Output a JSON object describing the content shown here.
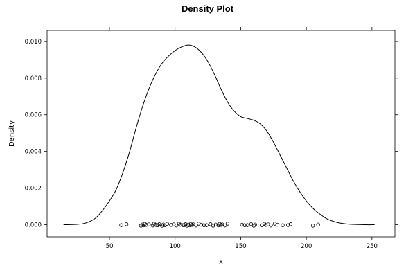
{
  "chart_data": {
    "type": "line",
    "title": "Density Plot",
    "xlabel": "x",
    "ylabel": "Density",
    "xlim": [
      2.5,
      267.5
    ],
    "ylim": [
      -0.00066,
      0.0106
    ],
    "x_ticks": [
      50,
      100,
      150,
      200,
      250
    ],
    "x_tick_labels": [
      "50",
      "100",
      "150",
      "200",
      "250"
    ],
    "y_ticks": [
      0.0,
      0.002,
      0.004,
      0.006,
      0.008,
      0.01
    ],
    "y_tick_labels": [
      "0.000",
      "0.002",
      "0.004",
      "0.006",
      "0.008",
      "0.010"
    ],
    "grid": false,
    "series": [
      {
        "points": [
          [
            15,
            0.0
          ],
          [
            25,
            2e-05
          ],
          [
            30,
            6e-05
          ],
          [
            35,
            0.00018
          ],
          [
            40,
            0.0004
          ],
          [
            45,
            0.0008
          ],
          [
            50,
            0.0013
          ],
          [
            55,
            0.0019
          ],
          [
            60,
            0.0028
          ],
          [
            65,
            0.0039
          ],
          [
            70,
            0.0052
          ],
          [
            75,
            0.0064
          ],
          [
            80,
            0.0074
          ],
          [
            85,
            0.0082
          ],
          [
            90,
            0.0088
          ],
          [
            95,
            0.0092
          ],
          [
            100,
            0.0095
          ],
          [
            105,
            0.0097
          ],
          [
            110,
            0.0098
          ],
          [
            115,
            0.0097
          ],
          [
            120,
            0.0094
          ],
          [
            125,
            0.0089
          ],
          [
            130,
            0.0082
          ],
          [
            135,
            0.0074
          ],
          [
            140,
            0.0067
          ],
          [
            145,
            0.0062
          ],
          [
            150,
            0.0059
          ],
          [
            155,
            0.0058
          ],
          [
            160,
            0.0057
          ],
          [
            165,
            0.0055
          ],
          [
            170,
            0.0051
          ],
          [
            175,
            0.0045
          ],
          [
            180,
            0.0038
          ],
          [
            185,
            0.0031
          ],
          [
            190,
            0.0024
          ],
          [
            195,
            0.0018
          ],
          [
            200,
            0.0013
          ],
          [
            205,
            0.0009
          ],
          [
            210,
            0.0006
          ],
          [
            215,
            0.00035
          ],
          [
            220,
            0.0002
          ],
          [
            225,
            0.0001
          ],
          [
            230,
            5e-05
          ],
          [
            235,
            2e-05
          ],
          [
            245,
            0.0
          ],
          [
            252,
            0.0
          ]
        ]
      }
    ],
    "rug": [
      59,
      63,
      74,
      75,
      76,
      77,
      78,
      80,
      83,
      84,
      85,
      86,
      87,
      88,
      90,
      91,
      92,
      94,
      97,
      99,
      101,
      103,
      104,
      106,
      107,
      108,
      109,
      110,
      111,
      112,
      113,
      114,
      116,
      118,
      120,
      122,
      124,
      127,
      129,
      131,
      133,
      134,
      135,
      136,
      138,
      140,
      151,
      153,
      155,
      158,
      160,
      161,
      166,
      168,
      169,
      171,
      173,
      176,
      178,
      182,
      186,
      188,
      205,
      209
    ]
  }
}
